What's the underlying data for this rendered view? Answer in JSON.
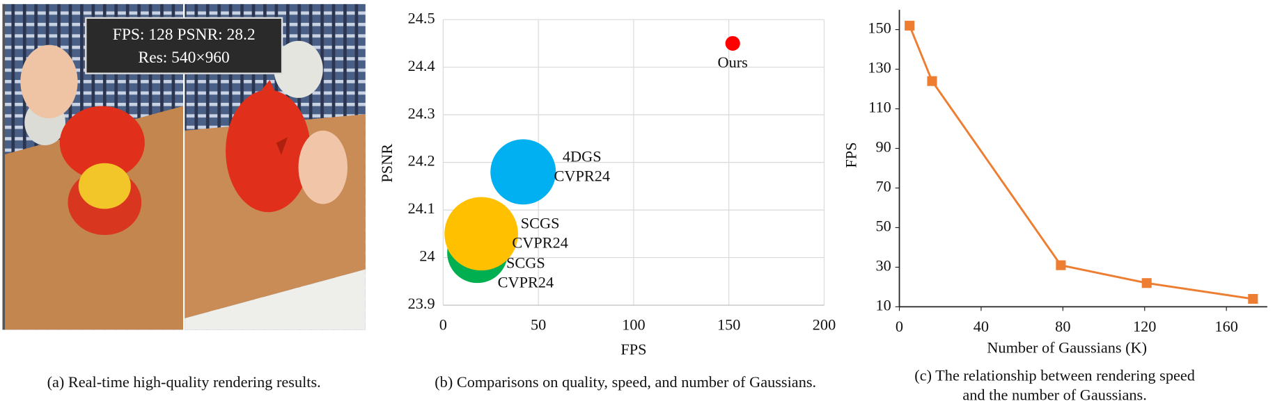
{
  "photo": {
    "overlay_line1": "FPS: 128   PSNR: 28.2",
    "overlay_line2": "Res: 540×960",
    "caption": "(a) Real-time high-quality rendering results."
  },
  "chart_data": [
    {
      "type": "scatter",
      "xlabel": "FPS",
      "ylabel": "PSNR",
      "caption": "(b) Comparisons on quality, speed, and number of Gaussians.",
      "xlim": [
        0,
        200
      ],
      "xticks": [
        0,
        50,
        100,
        150,
        200
      ],
      "ylim": [
        23.9,
        24.5
      ],
      "yticks": [
        23.9,
        24,
        24.1,
        24.2,
        24.3,
        24.4,
        24.5
      ],
      "grid": true,
      "series": [
        {
          "name": "SCGS",
          "venue": "CVPR24",
          "color": "#00b050",
          "x": 18,
          "y": 24.01,
          "size": 1369
        },
        {
          "name": "SCGS",
          "venue": "CVPR24",
          "color": "#ffc000",
          "x": 20,
          "y": 24.05,
          "size": 2025
        },
        {
          "name": "4DGS",
          "venue": "CVPR24",
          "color": "#00b0f0",
          "x": 42,
          "y": 24.18,
          "size": 1600
        },
        {
          "name": "Ours",
          "color": "#ff0000",
          "x": 152,
          "y": 24.45,
          "size": 81
        }
      ]
    },
    {
      "type": "line",
      "xlabel": "Number of Gaussians (K)",
      "ylabel": "FPS",
      "caption": [
        "(c) The relationship between rendering speed",
        "and the number of Gaussians."
      ],
      "xlim": [
        0,
        180
      ],
      "xticks": [
        0,
        40,
        80,
        120,
        160
      ],
      "ylim": [
        10,
        160
      ],
      "yticks": [
        10,
        30,
        50,
        70,
        90,
        110,
        130,
        150
      ],
      "grid": false,
      "series": [
        {
          "color": "#ed7d31",
          "x": [
            5,
            16,
            79,
            121,
            173
          ],
          "values": [
            152,
            124,
            31,
            22,
            14
          ]
        }
      ]
    }
  ]
}
